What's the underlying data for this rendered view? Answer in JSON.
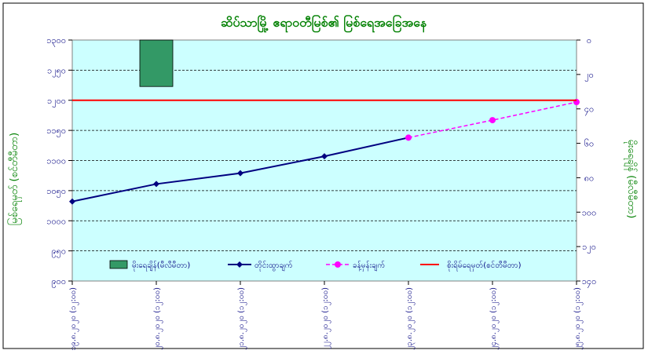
{
  "chart_data": {
    "type": "line",
    "title": "ဆိပ်သာမြို့ ဧရာဝတီမြစ်၏ မြစ်ရေအခြေအနေ",
    "ylabel": "မြစ်ရေမှတ် (စင်တီမီတာ)",
    "y2label": "မိုးရေချိန် (မီလီမီတာ)",
    "ylim": [
      900,
      1300
    ],
    "y2lim": [
      0,
      140
    ],
    "y2_inverted": true,
    "yticks": [
      "၉၀၀",
      "၉၅၀",
      "၁၀၀၀",
      "၁၀၅၀",
      "၁၁၀၀",
      "၁၁၅၀",
      "၁၂၀၀",
      "၁၂၅၀",
      "၁၃၀၀"
    ],
    "yticks_values": [
      900,
      950,
      1000,
      1050,
      1100,
      1150,
      1200,
      1250,
      1300
    ],
    "y2ticks": [
      "၀",
      "၂၀",
      "၄၀",
      "၆၀",
      "၈၀",
      "၁၀၀",
      "၁၂၀",
      "၁၄၀"
    ],
    "y2ticks_values": [
      0,
      20,
      40,
      60,
      80,
      100,
      120,
      140
    ],
    "categories": [
      "၁၉.၈.၂၀၂၀ (၁၂:၀၀)",
      "၂၀.၈.၂၀၂၀ (၁၂:၀၀)",
      "၂၁.၈.၂၀၂၀ (၁၂:၀၀)",
      "၂၂.၈.၂၀၂၀ (၁၂:၀၀)",
      "၂၃.၈.၂၀၂၀ (၁၂:၀၀)",
      "၂၄.၈.၂၀၂၀ (၁၂:၀၀)",
      "၂၅.၈.၂၀၂၀ (၁၂:၀၀)"
    ],
    "series": [
      {
        "name": "မိုးရေချိန်(မီလီမီတာ)",
        "kind": "bar",
        "axis": "y2",
        "color": "#339966",
        "values": [
          null,
          27,
          null,
          null,
          null,
          null,
          null
        ]
      },
      {
        "name": "တိုင်းထွာချက်",
        "kind": "line",
        "axis": "y",
        "color": "#000080",
        "values": [
          1032,
          1061,
          1079,
          1107,
          1138,
          null,
          null
        ]
      },
      {
        "name": "ခန့်မှန်းချက်",
        "kind": "line-dashed",
        "axis": "y",
        "color": "#ff00ff",
        "values": [
          null,
          null,
          null,
          null,
          1138,
          1167,
          1197
        ]
      },
      {
        "name": "စိုးရိမ်ရေမှတ်(စင်တီမီတာ)",
        "kind": "hline",
        "axis": "y",
        "color": "#ff0000",
        "value": 1200
      }
    ],
    "grid": true,
    "legend": "bottom-inside"
  }
}
